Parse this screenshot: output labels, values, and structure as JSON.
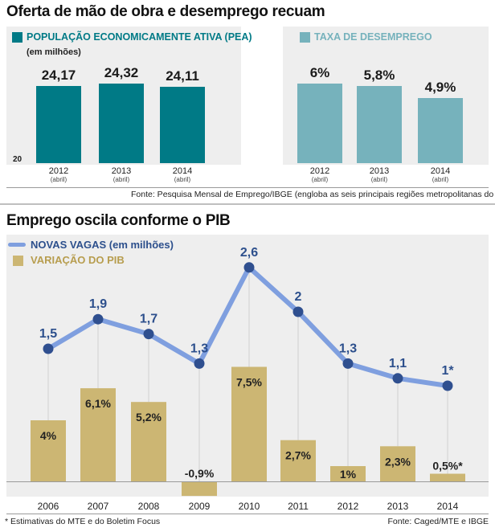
{
  "top": {
    "title": "Oferta de mão de obra e desemprego recuam",
    "source": "Fonte: Pesquisa Mensal de Emprego/IBGE (engloba as seis principais regiões metropolitanas do país)"
  },
  "bottom": {
    "title": "Emprego oscila conforme o PIB",
    "footnote": "* Estimativas do MTE e do Boletim Focus",
    "source": "Fonte: Caged/MTE e IBGE"
  },
  "colors": {
    "pea": "#007a86",
    "taxa": "#76b2bc",
    "line": "#7f9fdf",
    "dot": "#2f4f8f",
    "label_blue": "#2c4f8c",
    "pib": "#ccb673",
    "panel": "#eeeeee"
  },
  "chart_data": [
    {
      "type": "bar",
      "title": "POPULAÇÃO ECONOMICAMENTE ATIVA (PEA)",
      "ylabel": "(em milhões)",
      "axis_min_label": "20",
      "ylim": [
        20,
        25.3
      ],
      "categories": [
        "2012",
        "2013",
        "2014"
      ],
      "category_notes": [
        "(abril)",
        "(abril)",
        "(abril)"
      ],
      "values": [
        24.17,
        24.32,
        24.11
      ],
      "value_labels": [
        "24,17",
        "24,32",
        "24,11"
      ]
    },
    {
      "type": "bar",
      "title": "TAXA DE DESEMPREGO",
      "ylim": [
        0,
        7.4
      ],
      "categories": [
        "2012",
        "2013",
        "2014"
      ],
      "category_notes": [
        "(abril)",
        "(abril)",
        "(abril)"
      ],
      "values": [
        6,
        5.8,
        4.9
      ],
      "value_labels": [
        "6%",
        "5,8%",
        "4,9%"
      ]
    },
    {
      "type": "line+bar",
      "categories": [
        "2006",
        "2007",
        "2008",
        "2009",
        "2010",
        "2011",
        "2012",
        "2013",
        "2014"
      ],
      "series": [
        {
          "name": "NOVAS VAGAS (em milhões)",
          "type": "line",
          "values": [
            1.5,
            1.9,
            1.7,
            1.3,
            2.6,
            2,
            1.3,
            1.1,
            1
          ],
          "value_labels": [
            "1,5",
            "1,9",
            "1,7",
            "1,3",
            "2,6",
            "2",
            "1,3",
            "1,1",
            "1*"
          ]
        },
        {
          "name": "VARIAÇÃO DO PIB",
          "type": "bar",
          "values": [
            4,
            6.1,
            5.2,
            -0.9,
            7.5,
            2.7,
            1,
            2.3,
            0.5
          ],
          "value_labels": [
            "4%",
            "6,1%",
            "5,2%",
            "-0,9%",
            "7,5%",
            "2,7%",
            "1%",
            "2,3%",
            "0,5%*"
          ]
        }
      ]
    }
  ]
}
